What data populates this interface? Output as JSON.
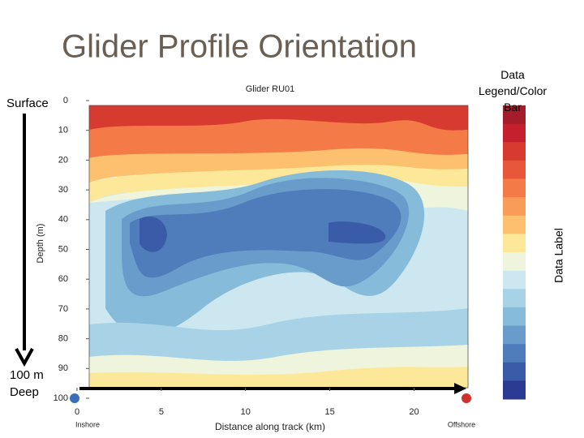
{
  "chart_data": {
    "type": "contour",
    "slide_title": "Glider Profile Orientation",
    "title": "Glider RU01",
    "xlabel": "Distance along track (km)",
    "ylabel": "Depth (m)",
    "xlim": [
      0,
      23.2
    ],
    "xticks": [
      0,
      5,
      10,
      15,
      20
    ],
    "ylim": [
      0,
      100
    ],
    "yticks": [
      0,
      10,
      20,
      30,
      40,
      50,
      60,
      70,
      80,
      90,
      100
    ],
    "y_inverted": true,
    "annotations": {
      "surface": "Surface",
      "deep": "100 m Deep",
      "inshore": "Inshore",
      "offshore": "Offshore",
      "legend": "Data Legend/Color Bar",
      "data_label": "Data Label"
    },
    "colorbar_colors": [
      "#a51c2a",
      "#c4202d",
      "#d73a2f",
      "#e9573a",
      "#f47a47",
      "#f99c58",
      "#fcc06e",
      "#fde89a",
      "#eef5dc",
      "#cde7f0",
      "#a8d3e6",
      "#86bcd9",
      "#6a9ccb",
      "#4f7cbb",
      "#3a5ba8",
      "#2b3a93"
    ]
  }
}
